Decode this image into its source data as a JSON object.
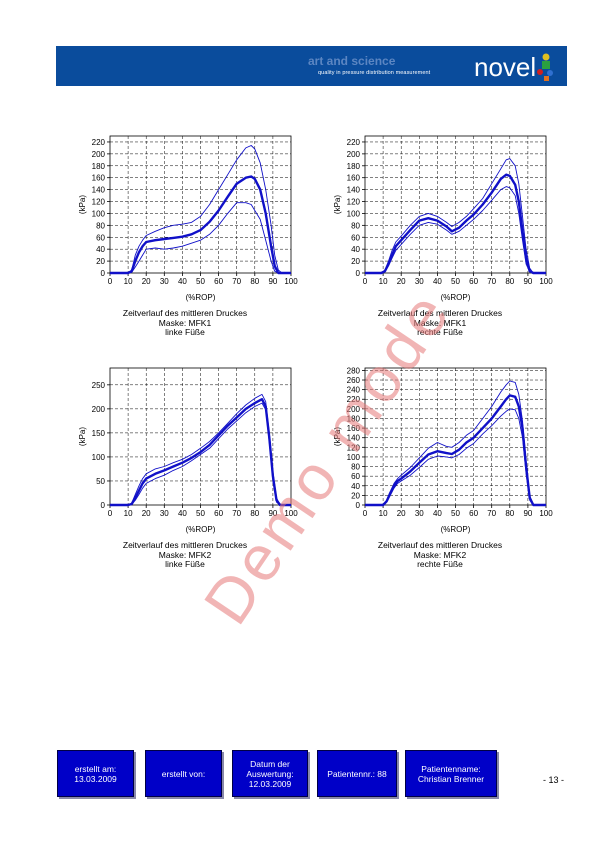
{
  "header": {
    "tagline_title": "art and science",
    "tagline_sub": "quality in pressure distribution measurement",
    "brand": "novel",
    "banner_color": "#0a4c9c"
  },
  "watermark": "Demo mode",
  "captions": [
    {
      "line1": "Zeitverlauf des mittleren Druckes",
      "line2": "Maske: MFK1",
      "line3": "linke Füße"
    },
    {
      "line1": "Zeitverlauf des mittleren Druckes",
      "line2": "Maske: MFK1",
      "line3": "rechte Füße"
    },
    {
      "line1": "Zeitverlauf des mittleren Druckes",
      "line2": "Maske: MFK2",
      "line3": "linke Füße"
    },
    {
      "line1": "Zeitverlauf des mittleren Druckes",
      "line2": "Maske: MFK2",
      "line3": "rechte Füße"
    }
  ],
  "chart_data": [
    {
      "type": "line",
      "xlabel": "(%ROP)",
      "ylabel": "(kPa)",
      "xlim": [
        0,
        100
      ],
      "ylim": [
        0,
        230
      ],
      "xticks": [
        0,
        10,
        20,
        30,
        40,
        50,
        60,
        70,
        80,
        90,
        100
      ],
      "yticks": [
        0,
        20,
        40,
        60,
        80,
        100,
        120,
        140,
        160,
        180,
        200,
        220
      ],
      "grid": true,
      "x": [
        0,
        5,
        10,
        12,
        14,
        16,
        18,
        20,
        25,
        30,
        35,
        40,
        45,
        50,
        55,
        60,
        65,
        70,
        75,
        78,
        80,
        83,
        86,
        89,
        91,
        93,
        95,
        100
      ],
      "series": [
        {
          "values": [
            0,
            0,
            0,
            3,
            20,
            35,
            45,
            52,
            55,
            57,
            59,
            61,
            65,
            72,
            86,
            105,
            128,
            150,
            160,
            162,
            158,
            140,
            100,
            45,
            12,
            0,
            0,
            0
          ]
        },
        {
          "values": [
            0,
            0,
            0,
            5,
            30,
            45,
            55,
            63,
            70,
            76,
            80,
            82,
            85,
            95,
            115,
            140,
            165,
            190,
            210,
            214,
            208,
            185,
            140,
            80,
            30,
            5,
            0,
            0
          ]
        },
        {
          "values": [
            0,
            0,
            0,
            1,
            10,
            20,
            30,
            40,
            42,
            40,
            42,
            45,
            50,
            55,
            65,
            80,
            100,
            118,
            118,
            115,
            105,
            90,
            55,
            20,
            3,
            0,
            0,
            0
          ]
        }
      ]
    },
    {
      "type": "line",
      "xlabel": "(%ROP)",
      "ylabel": "(kPa)",
      "xlim": [
        0,
        100
      ],
      "ylim": [
        0,
        230
      ],
      "xticks": [
        0,
        10,
        20,
        30,
        40,
        50,
        60,
        70,
        80,
        90,
        100
      ],
      "yticks": [
        0,
        20,
        40,
        60,
        80,
        100,
        120,
        140,
        160,
        180,
        200,
        220
      ],
      "grid": true,
      "x": [
        0,
        5,
        9,
        11,
        13,
        15,
        17,
        20,
        25,
        30,
        35,
        40,
        45,
        48,
        52,
        56,
        60,
        65,
        70,
        75,
        78,
        80,
        83,
        85,
        87,
        89,
        91,
        93,
        100
      ],
      "series": [
        {
          "values": [
            0,
            0,
            0,
            3,
            15,
            30,
            45,
            55,
            72,
            88,
            92,
            88,
            78,
            70,
            76,
            88,
            98,
            115,
            135,
            158,
            165,
            163,
            148,
            120,
            70,
            25,
            3,
            0,
            0
          ]
        },
        {
          "values": [
            0,
            0,
            0,
            5,
            20,
            38,
            52,
            62,
            80,
            95,
            100,
            95,
            85,
            78,
            85,
            95,
            108,
            125,
            150,
            175,
            190,
            192,
            180,
            150,
            95,
            40,
            8,
            0,
            0
          ]
        },
        {
          "values": [
            0,
            0,
            0,
            2,
            12,
            25,
            38,
            48,
            65,
            80,
            85,
            82,
            72,
            65,
            70,
            80,
            90,
            105,
            122,
            140,
            145,
            143,
            130,
            100,
            55,
            15,
            2,
            0,
            0
          ]
        }
      ]
    },
    {
      "type": "line",
      "xlabel": "(%ROP)",
      "ylabel": "(kPa)",
      "xlim": [
        0,
        100
      ],
      "ylim": [
        0,
        285
      ],
      "xticks": [
        0,
        10,
        20,
        30,
        40,
        50,
        60,
        70,
        80,
        90,
        100
      ],
      "yticks": [
        0,
        50,
        100,
        150,
        200,
        250
      ],
      "grid": true,
      "x": [
        0,
        5,
        10,
        12,
        14,
        16,
        18,
        20,
        25,
        30,
        35,
        40,
        45,
        50,
        55,
        60,
        65,
        70,
        75,
        80,
        84,
        86,
        88,
        90,
        92,
        94,
        100
      ],
      "series": [
        {
          "values": [
            0,
            0,
            0,
            2,
            15,
            30,
            45,
            55,
            65,
            72,
            80,
            88,
            98,
            110,
            125,
            145,
            165,
            182,
            200,
            212,
            220,
            205,
            140,
            60,
            10,
            0,
            0
          ]
        },
        {
          "values": [
            0,
            0,
            0,
            4,
            22,
            40,
            55,
            65,
            75,
            80,
            88,
            95,
            105,
            118,
            132,
            150,
            170,
            190,
            208,
            222,
            230,
            215,
            150,
            70,
            15,
            0,
            0
          ]
        },
        {
          "values": [
            0,
            0,
            0,
            1,
            10,
            22,
            35,
            45,
            55,
            62,
            72,
            80,
            92,
            105,
            118,
            138,
            158,
            175,
            192,
            205,
            212,
            198,
            130,
            50,
            6,
            0,
            0
          ]
        }
      ]
    },
    {
      "type": "line",
      "xlabel": "(%ROP)",
      "ylabel": "(kPa)",
      "xlim": [
        0,
        100
      ],
      "ylim": [
        0,
        285
      ],
      "xticks": [
        0,
        10,
        20,
        30,
        40,
        50,
        60,
        70,
        80,
        90,
        100
      ],
      "yticks": [
        0,
        20,
        40,
        60,
        80,
        100,
        120,
        140,
        160,
        180,
        200,
        220,
        240,
        260,
        280
      ],
      "grid": true,
      "x": [
        0,
        5,
        8,
        10,
        12,
        14,
        16,
        18,
        20,
        25,
        30,
        35,
        40,
        45,
        48,
        52,
        56,
        60,
        65,
        70,
        75,
        78,
        80,
        83,
        85,
        87,
        89,
        91,
        93,
        100
      ],
      "series": [
        {
          "values": [
            0,
            0,
            0,
            0,
            8,
            25,
            40,
            50,
            55,
            70,
            88,
            105,
            112,
            108,
            106,
            115,
            130,
            140,
            160,
            180,
            205,
            220,
            228,
            225,
            205,
            160,
            80,
            15,
            0,
            0
          ]
        },
        {
          "values": [
            0,
            0,
            0,
            0,
            10,
            28,
            45,
            55,
            62,
            78,
            98,
            118,
            130,
            122,
            120,
            130,
            145,
            155,
            180,
            205,
            235,
            250,
            258,
            255,
            230,
            175,
            90,
            20,
            0,
            0
          ]
        },
        {
          "values": [
            0,
            0,
            0,
            0,
            6,
            20,
            35,
            45,
            50,
            62,
            78,
            95,
            102,
            100,
            98,
            105,
            118,
            128,
            148,
            165,
            185,
            195,
            200,
            198,
            180,
            140,
            65,
            10,
            0,
            0
          ]
        }
      ]
    }
  ],
  "footer": {
    "created_on_label": "erstellt am:",
    "created_on_value": "13.03.2009",
    "created_by_label": "erstellt von:",
    "eval_date_label1": "Datum der",
    "eval_date_label2": "Auswertung:",
    "eval_date_value": "12.03.2009",
    "patient_no": "Patientennr.: 88",
    "patient_name_label": "Patientenname:",
    "patient_name_value": "Christian Brenner",
    "page_number": "- 13 -",
    "box_color": "#0000c8"
  }
}
